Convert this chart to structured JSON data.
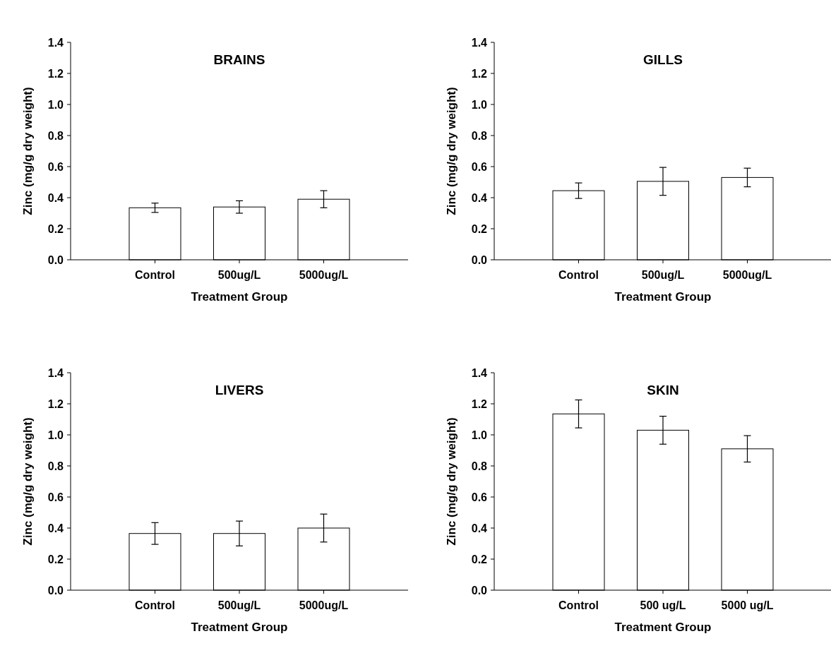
{
  "chart_data": [
    {
      "type": "bar",
      "title": "BRAINS",
      "xlabel": "Treatment Group",
      "ylabel": "Zinc (mg/g dry weight)",
      "categories": [
        "Control",
        "500ug/L",
        "5000ug/L"
      ],
      "values": [
        0.335,
        0.34,
        0.39
      ],
      "errors": [
        0.03,
        0.04,
        0.055
      ],
      "color": "#ffffff",
      "ylim": [
        0,
        1.4
      ],
      "yticks": [
        {
          "value": 0,
          "label": "0.0"
        },
        {
          "value": 0.2,
          "label": "0.2"
        },
        {
          "value": 0.4,
          "label": "0.4"
        },
        {
          "value": 0.6,
          "label": "0.6"
        },
        {
          "value": 0.8,
          "label": "0.8"
        },
        {
          "value": 1,
          "label": "1.0"
        },
        {
          "value": 1.2,
          "label": "1.2"
        },
        {
          "value": 1.4,
          "label": "1.4"
        }
      ],
      "grid": false
    },
    {
      "type": "bar",
      "title": "GILLS",
      "xlabel": "Treatment Group",
      "ylabel": "Zinc (mg/g dry weight)",
      "categories": [
        "Control",
        "500ug/L",
        "5000ug/L"
      ],
      "values": [
        0.445,
        0.505,
        0.53
      ],
      "errors": [
        0.05,
        0.09,
        0.06
      ],
      "color": "#ffffff",
      "ylim": [
        0,
        1.4
      ],
      "yticks": [
        {
          "value": 0,
          "label": "0.0"
        },
        {
          "value": 0.2,
          "label": "0.2"
        },
        {
          "value": 0.4,
          "label": "0.4"
        },
        {
          "value": 0.6,
          "label": "0.6"
        },
        {
          "value": 0.8,
          "label": "0.8"
        },
        {
          "value": 1,
          "label": "1.0"
        },
        {
          "value": 1.2,
          "label": "1.2"
        },
        {
          "value": 1.4,
          "label": "1.4"
        }
      ],
      "grid": false
    },
    {
      "type": "bar",
      "title": "LIVERS",
      "xlabel": "Treatment Group",
      "ylabel": "Zinc (mg/g dry weight)",
      "categories": [
        "Control",
        "500ug/L",
        "5000ug/L"
      ],
      "values": [
        0.365,
        0.365,
        0.4
      ],
      "errors": [
        0.07,
        0.08,
        0.09
      ],
      "color": "#ffffff",
      "ylim": [
        0,
        1.4
      ],
      "yticks": [
        {
          "value": 0,
          "label": "0.0"
        },
        {
          "value": 0.2,
          "label": "0.2"
        },
        {
          "value": 0.4,
          "label": "0.4"
        },
        {
          "value": 0.6,
          "label": "0.6"
        },
        {
          "value": 0.8,
          "label": "0.8"
        },
        {
          "value": 1,
          "label": "1.0"
        },
        {
          "value": 1.2,
          "label": "1.2"
        },
        {
          "value": 1.4,
          "label": "1.4"
        }
      ],
      "grid": false
    },
    {
      "type": "bar",
      "title": "SKIN",
      "xlabel": "Treatment Group",
      "ylabel": "Zinc (mg/g dry weight)",
      "categories": [
        "Control",
        "500 ug/L",
        "5000 ug/L"
      ],
      "values": [
        1.135,
        1.03,
        0.91
      ],
      "errors": [
        0.09,
        0.09,
        0.085
      ],
      "color": "#ffffff",
      "ylim": [
        0,
        1.4
      ],
      "yticks": [
        {
          "value": 0,
          "label": "0.0"
        },
        {
          "value": 0.2,
          "label": "0.2"
        },
        {
          "value": 0.4,
          "label": "0.4"
        },
        {
          "value": 0.6,
          "label": "0.6"
        },
        {
          "value": 0.8,
          "label": "0.8"
        },
        {
          "value": 1,
          "label": "1.0"
        },
        {
          "value": 1.2,
          "label": "1.2"
        },
        {
          "value": 1.4,
          "label": "1.4"
        }
      ],
      "grid": false
    }
  ]
}
